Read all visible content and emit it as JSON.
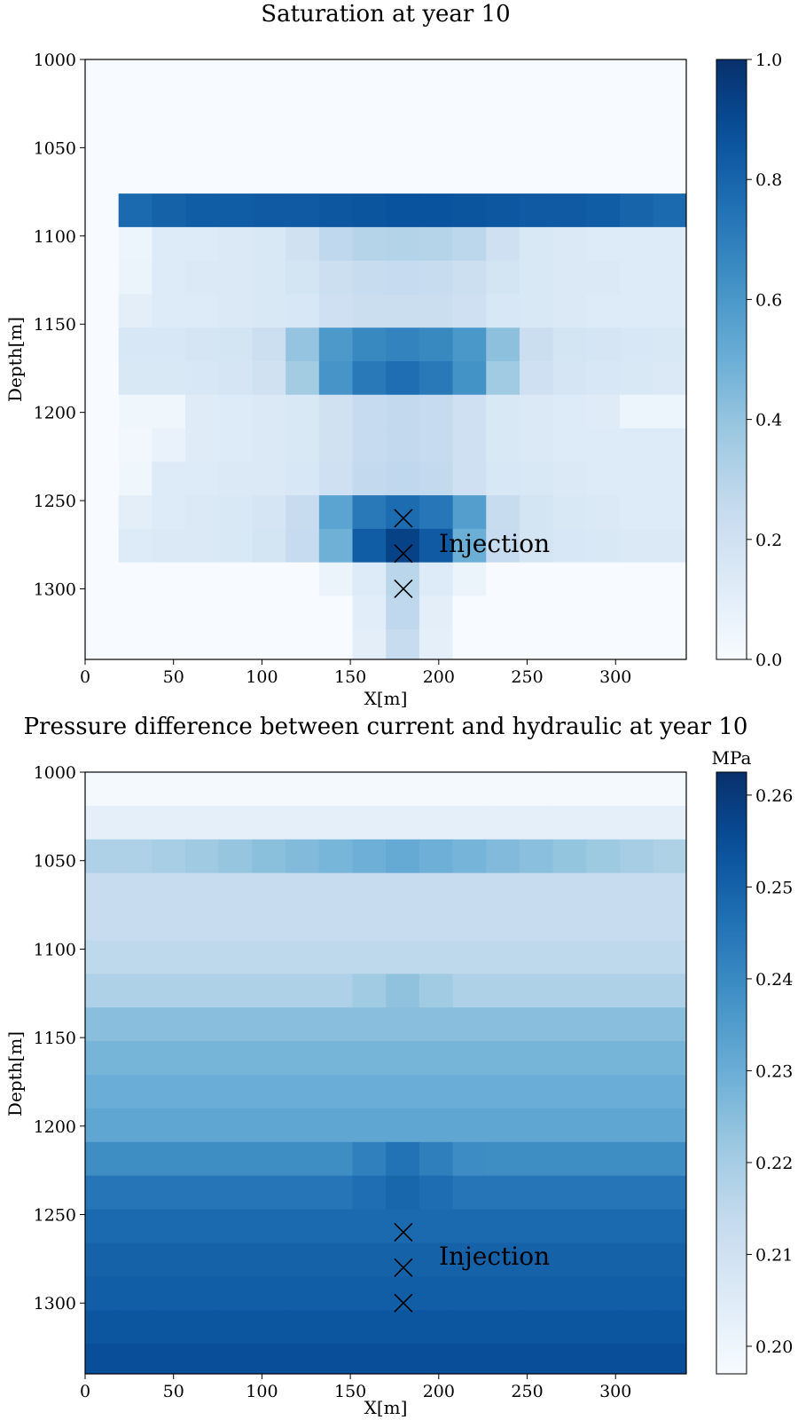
{
  "chart_data": [
    {
      "type": "heatmap",
      "title": "Saturation at year 10",
      "xlabel": "X[m]",
      "ylabel": "Depth[m]",
      "xlim": [
        0,
        340
      ],
      "ylim": [
        1340,
        1000
      ],
      "x_ticks": [
        0,
        50,
        100,
        150,
        200,
        250,
        300
      ],
      "y_ticks": [
        1000,
        1050,
        1100,
        1150,
        1200,
        1250,
        1300
      ],
      "colorscale": "Blues",
      "cell_dx": 18.9,
      "cell_dy": 19,
      "grid_x0": 0,
      "grid_y0": 1000,
      "cbar_range": [
        0.0,
        1.0
      ],
      "cbar_ticks": [
        "0.0",
        "0.2",
        "0.4",
        "0.6",
        "0.8",
        "1.0"
      ],
      "cbar_unit": "",
      "annotation": "Injection",
      "injection_points": [
        {
          "x": 180,
          "y": 1260
        },
        {
          "x": 180,
          "y": 1280
        },
        {
          "x": 180,
          "y": 1300
        }
      ],
      "values": [
        [
          0,
          0,
          0,
          0,
          0,
          0,
          0,
          0,
          0,
          0,
          0,
          0,
          0,
          0,
          0,
          0,
          0,
          0
        ],
        [
          0,
          0,
          0,
          0,
          0,
          0,
          0,
          0,
          0,
          0,
          0,
          0,
          0,
          0,
          0,
          0,
          0,
          0
        ],
        [
          0,
          0,
          0,
          0,
          0,
          0,
          0,
          0,
          0,
          0,
          0,
          0,
          0,
          0,
          0,
          0,
          0,
          0
        ],
        [
          0,
          0,
          0,
          0,
          0,
          0,
          0,
          0,
          0,
          0,
          0,
          0,
          0,
          0,
          0,
          0,
          0,
          0
        ],
        [
          0,
          0.78,
          0.81,
          0.83,
          0.83,
          0.84,
          0.84,
          0.85,
          0.86,
          0.87,
          0.87,
          0.86,
          0.85,
          0.84,
          0.84,
          0.83,
          0.8,
          0.78
        ],
        [
          0,
          0.05,
          0.13,
          0.13,
          0.14,
          0.15,
          0.2,
          0.27,
          0.3,
          0.31,
          0.3,
          0.28,
          0.21,
          0.15,
          0.14,
          0.13,
          0.13,
          0.13
        ],
        [
          0,
          0.06,
          0.13,
          0.14,
          0.14,
          0.15,
          0.18,
          0.22,
          0.24,
          0.25,
          0.24,
          0.22,
          0.18,
          0.15,
          0.14,
          0.14,
          0.13,
          0.13
        ],
        [
          0,
          0.1,
          0.13,
          0.13,
          0.14,
          0.15,
          0.16,
          0.21,
          0.23,
          0.23,
          0.23,
          0.21,
          0.16,
          0.15,
          0.14,
          0.13,
          0.13,
          0.13
        ],
        [
          0,
          0.16,
          0.16,
          0.17,
          0.18,
          0.22,
          0.4,
          0.59,
          0.66,
          0.68,
          0.66,
          0.6,
          0.42,
          0.23,
          0.18,
          0.17,
          0.16,
          0.15
        ],
        [
          0,
          0.15,
          0.15,
          0.16,
          0.17,
          0.2,
          0.36,
          0.61,
          0.72,
          0.76,
          0.72,
          0.62,
          0.37,
          0.21,
          0.17,
          0.16,
          0.15,
          0.14
        ],
        [
          0,
          0.04,
          0.04,
          0.12,
          0.13,
          0.14,
          0.15,
          0.2,
          0.25,
          0.26,
          0.25,
          0.21,
          0.15,
          0.14,
          0.13,
          0.12,
          0.05,
          0.05
        ],
        [
          0,
          0.03,
          0.07,
          0.12,
          0.13,
          0.14,
          0.15,
          0.2,
          0.25,
          0.26,
          0.25,
          0.21,
          0.15,
          0.14,
          0.13,
          0.13,
          0.13,
          0.13
        ],
        [
          0,
          0.04,
          0.13,
          0.13,
          0.14,
          0.14,
          0.16,
          0.21,
          0.26,
          0.27,
          0.26,
          0.21,
          0.16,
          0.15,
          0.14,
          0.13,
          0.13,
          0.13
        ],
        [
          0,
          0.1,
          0.13,
          0.14,
          0.15,
          0.17,
          0.24,
          0.55,
          0.72,
          0.77,
          0.73,
          0.57,
          0.24,
          0.18,
          0.15,
          0.14,
          0.13,
          0.13
        ],
        [
          0,
          0.13,
          0.14,
          0.14,
          0.15,
          0.18,
          0.25,
          0.49,
          0.83,
          0.93,
          0.84,
          0.5,
          0.25,
          0.18,
          0.16,
          0.15,
          0.14,
          0.14
        ],
        [
          0,
          0,
          0,
          0,
          0,
          0,
          0,
          0.06,
          0.13,
          0.29,
          0.13,
          0.06,
          0,
          0,
          0,
          0,
          0,
          0
        ],
        [
          0,
          0,
          0,
          0,
          0,
          0,
          0,
          0,
          0.11,
          0.27,
          0.1,
          0,
          0,
          0,
          0,
          0,
          0,
          0
        ],
        [
          0,
          0,
          0,
          0,
          0,
          0,
          0,
          0,
          0.1,
          0.24,
          0.09,
          0,
          0,
          0,
          0,
          0,
          0,
          0
        ],
        [
          0,
          0,
          0,
          0,
          0,
          0,
          0,
          0,
          0,
          0,
          0,
          0,
          0,
          0,
          0,
          0,
          0,
          0
        ]
      ]
    },
    {
      "type": "heatmap",
      "title": "Pressure difference between current and hydraulic at year 10",
      "xlabel": "X[m]",
      "ylabel": "Depth[m]",
      "xlim": [
        0,
        340
      ],
      "ylim": [
        1340,
        1000
      ],
      "x_ticks": [
        0,
        50,
        100,
        150,
        200,
        250,
        300
      ],
      "y_ticks": [
        1000,
        1050,
        1100,
        1150,
        1200,
        1250,
        1300
      ],
      "colorscale": "Blues",
      "cell_dx": 18.9,
      "cell_dy": 19,
      "grid_x0": 0,
      "grid_y0": 1000,
      "cbar_range": [
        0.197,
        0.2625
      ],
      "cbar_ticks": [
        "0.20",
        "0.21",
        "0.22",
        "0.23",
        "0.24",
        "0.25",
        "0.26"
      ],
      "cbar_unit": "MPa",
      "annotation": "Injection",
      "injection_points": [
        {
          "x": 180,
          "y": 1260
        },
        {
          "x": 180,
          "y": 1280
        },
        {
          "x": 180,
          "y": 1300
        }
      ],
      "row_base": [
        0.198,
        0.203,
        0.218,
        0.213,
        0.213,
        0.215,
        0.218,
        0.225,
        0.228,
        0.23,
        0.232,
        0.239,
        0.245,
        0.248,
        0.25,
        0.251,
        0.253,
        0.255,
        0.262
      ],
      "row_variation": [
        0,
        0,
        0.013,
        0,
        0,
        0,
        0,
        0,
        0,
        0,
        0,
        0,
        0,
        0,
        0,
        0,
        0,
        0,
        0
      ],
      "center_bump": [
        0,
        0,
        0,
        0,
        0,
        0,
        0.006,
        0,
        0,
        0,
        0,
        0.007,
        0.004,
        0,
        0,
        0,
        0,
        0,
        0
      ]
    }
  ]
}
